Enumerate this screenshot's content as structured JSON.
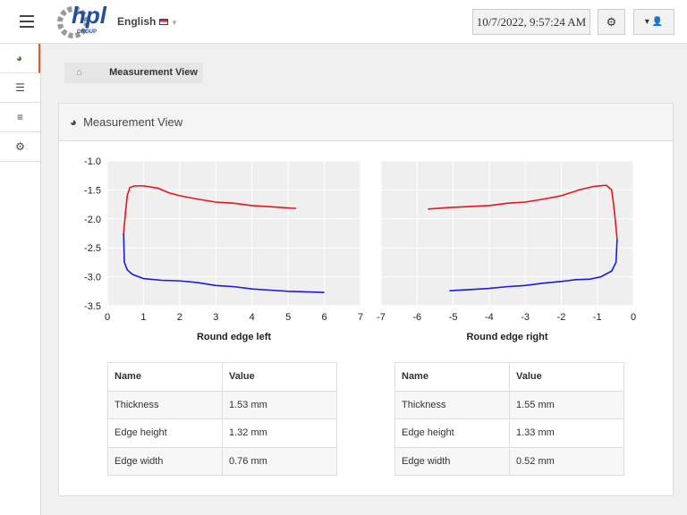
{
  "header": {
    "logo": "hpl",
    "logo_sub": "GROUP",
    "language": "English",
    "datetime": "10/7/2022, 9:57:24 AM"
  },
  "breadcrumb": "Measurement View",
  "panel": {
    "title": "Measurement View"
  },
  "chart_data": [
    {
      "type": "line",
      "x_label": "Round edge left",
      "xlim": [
        0,
        7
      ],
      "xticks": [
        0,
        1,
        2,
        3,
        4,
        5,
        6,
        7
      ],
      "ylim": [
        -3.5,
        -1.0
      ],
      "yticks": [
        {
          "value": -1.0,
          "label": "-1.0"
        },
        -1.5,
        {
          "value": -2.0,
          "label": "-2.0"
        },
        -2.5,
        {
          "value": -3.0,
          "label": "-3.0"
        },
        -3.5
      ],
      "series": [
        {
          "color": "#e8141b",
          "x": [
            0.45,
            0.5,
            0.55,
            0.62,
            0.75,
            1.0,
            1.4,
            1.7,
            2.0,
            2.5,
            3.0,
            3.5,
            4.0,
            4.5,
            5.22
          ],
          "values": [
            -2.25,
            -1.9,
            -1.6,
            -1.46,
            -1.43,
            -1.43,
            -1.47,
            -1.55,
            -1.6,
            -1.66,
            -1.71,
            -1.73,
            -1.77,
            -1.79,
            -1.82
          ]
        },
        {
          "color": "#1a1ae0",
          "x": [
            0.45,
            0.47,
            0.55,
            0.7,
            1.0,
            1.5,
            2.0,
            2.5,
            3.0,
            3.5,
            4.0,
            4.5,
            5.0,
            5.5,
            6.0
          ],
          "values": [
            -2.25,
            -2.75,
            -2.88,
            -2.96,
            -3.03,
            -3.06,
            -3.07,
            -3.1,
            -3.15,
            -3.17,
            -3.21,
            -3.23,
            -3.25,
            -3.26,
            -3.27
          ]
        }
      ]
    },
    {
      "type": "line",
      "x_label": "Round edge right",
      "xlim": [
        -7,
        0
      ],
      "xticks": [
        -7,
        -6,
        -5,
        -4,
        -3,
        -2,
        -1,
        0
      ],
      "ylim": [
        -3.5,
        -1.0
      ],
      "yticks": [
        {
          "value": -1.0,
          "label": "-1.0"
        },
        -1.5,
        {
          "value": -2.0,
          "label": "-2.0"
        },
        -2.5,
        {
          "value": -3.0,
          "label": "-3.0"
        },
        -3.5
      ],
      "series": [
        {
          "color": "#e8141b",
          "x": [
            -5.7,
            -5.0,
            -4.0,
            -3.5,
            -3.0,
            -2.5,
            -2.0,
            -1.5,
            -1.1,
            -0.75,
            -0.6,
            -0.52,
            -0.45
          ],
          "values": [
            -1.83,
            -1.8,
            -1.77,
            -1.73,
            -1.71,
            -1.66,
            -1.6,
            -1.5,
            -1.44,
            -1.42,
            -1.5,
            -1.9,
            -2.35
          ]
        },
        {
          "color": "#1a1ae0",
          "x": [
            -0.45,
            -0.48,
            -0.6,
            -0.9,
            -1.2,
            -1.6,
            -2.0,
            -2.5,
            -3.0,
            -3.5,
            -4.0,
            -4.5,
            -5.1
          ],
          "values": [
            -2.35,
            -2.75,
            -2.9,
            -3.0,
            -3.04,
            -3.05,
            -3.08,
            -3.11,
            -3.15,
            -3.17,
            -3.2,
            -3.22,
            -3.24
          ]
        }
      ]
    }
  ],
  "tables": [
    {
      "header": [
        "Name",
        "Value"
      ],
      "rows": [
        [
          "Thickness",
          "1.53 mm"
        ],
        [
          "Edge height",
          "1.32 mm"
        ],
        [
          "Edge width",
          "0.76 mm"
        ]
      ]
    },
    {
      "header": [
        "Name",
        "Value"
      ],
      "rows": [
        [
          "Thickness",
          "1.55 mm"
        ],
        [
          "Edge height",
          "1.33 mm"
        ],
        [
          "Edge width",
          "0.52 mm"
        ]
      ]
    }
  ]
}
